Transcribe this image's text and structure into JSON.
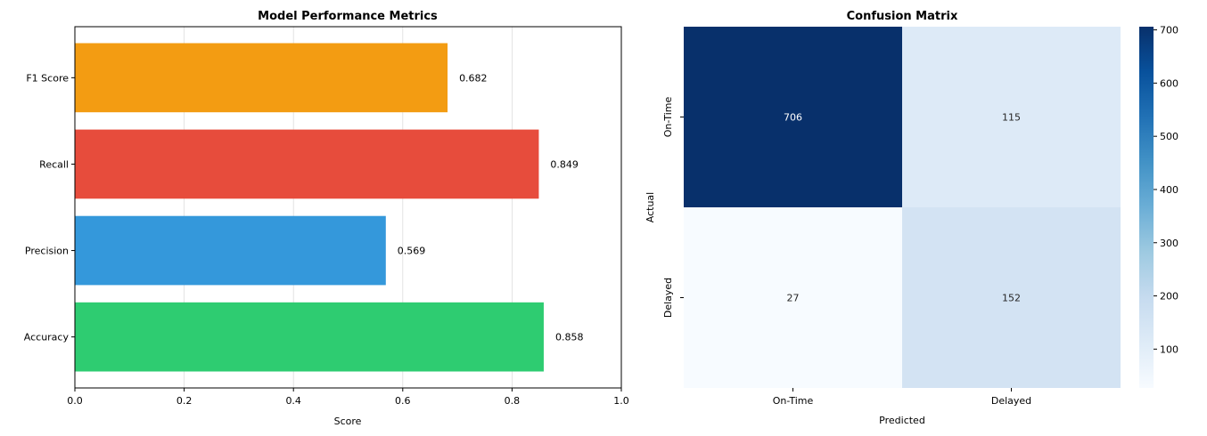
{
  "chart_data": [
    {
      "type": "bar",
      "orientation": "horizontal",
      "title": "Model Performance Metrics",
      "xlabel": "Score",
      "ylabel": "",
      "xlim": [
        0,
        1.0
      ],
      "xticks": [
        "0.0",
        "0.2",
        "0.4",
        "0.6",
        "0.8",
        "1.0"
      ],
      "grid": "x-axis, light",
      "categories": [
        "Accuracy",
        "Precision",
        "Recall",
        "F1 Score"
      ],
      "values": [
        0.858,
        0.569,
        0.849,
        0.682
      ],
      "value_labels": [
        "0.858",
        "0.569",
        "0.849",
        "0.682"
      ],
      "colors": [
        "#2ecc71",
        "#3498db",
        "#e74c3c",
        "#f39c12"
      ]
    },
    {
      "type": "heatmap",
      "title": "Confusion Matrix",
      "xlabel": "Predicted",
      "ylabel": "Actual",
      "x_categories": [
        "On-Time",
        "Delayed"
      ],
      "y_categories": [
        "On-Time",
        "Delayed"
      ],
      "values": [
        [
          706,
          115
        ],
        [
          27,
          152
        ]
      ],
      "value_labels": [
        [
          "706",
          "115"
        ],
        [
          "27",
          "152"
        ]
      ],
      "colormap": "Blues",
      "colorbar_range": [
        27,
        706
      ],
      "colorbar_ticks": [
        "100",
        "200",
        "300",
        "400",
        "500",
        "600",
        "700"
      ]
    }
  ]
}
